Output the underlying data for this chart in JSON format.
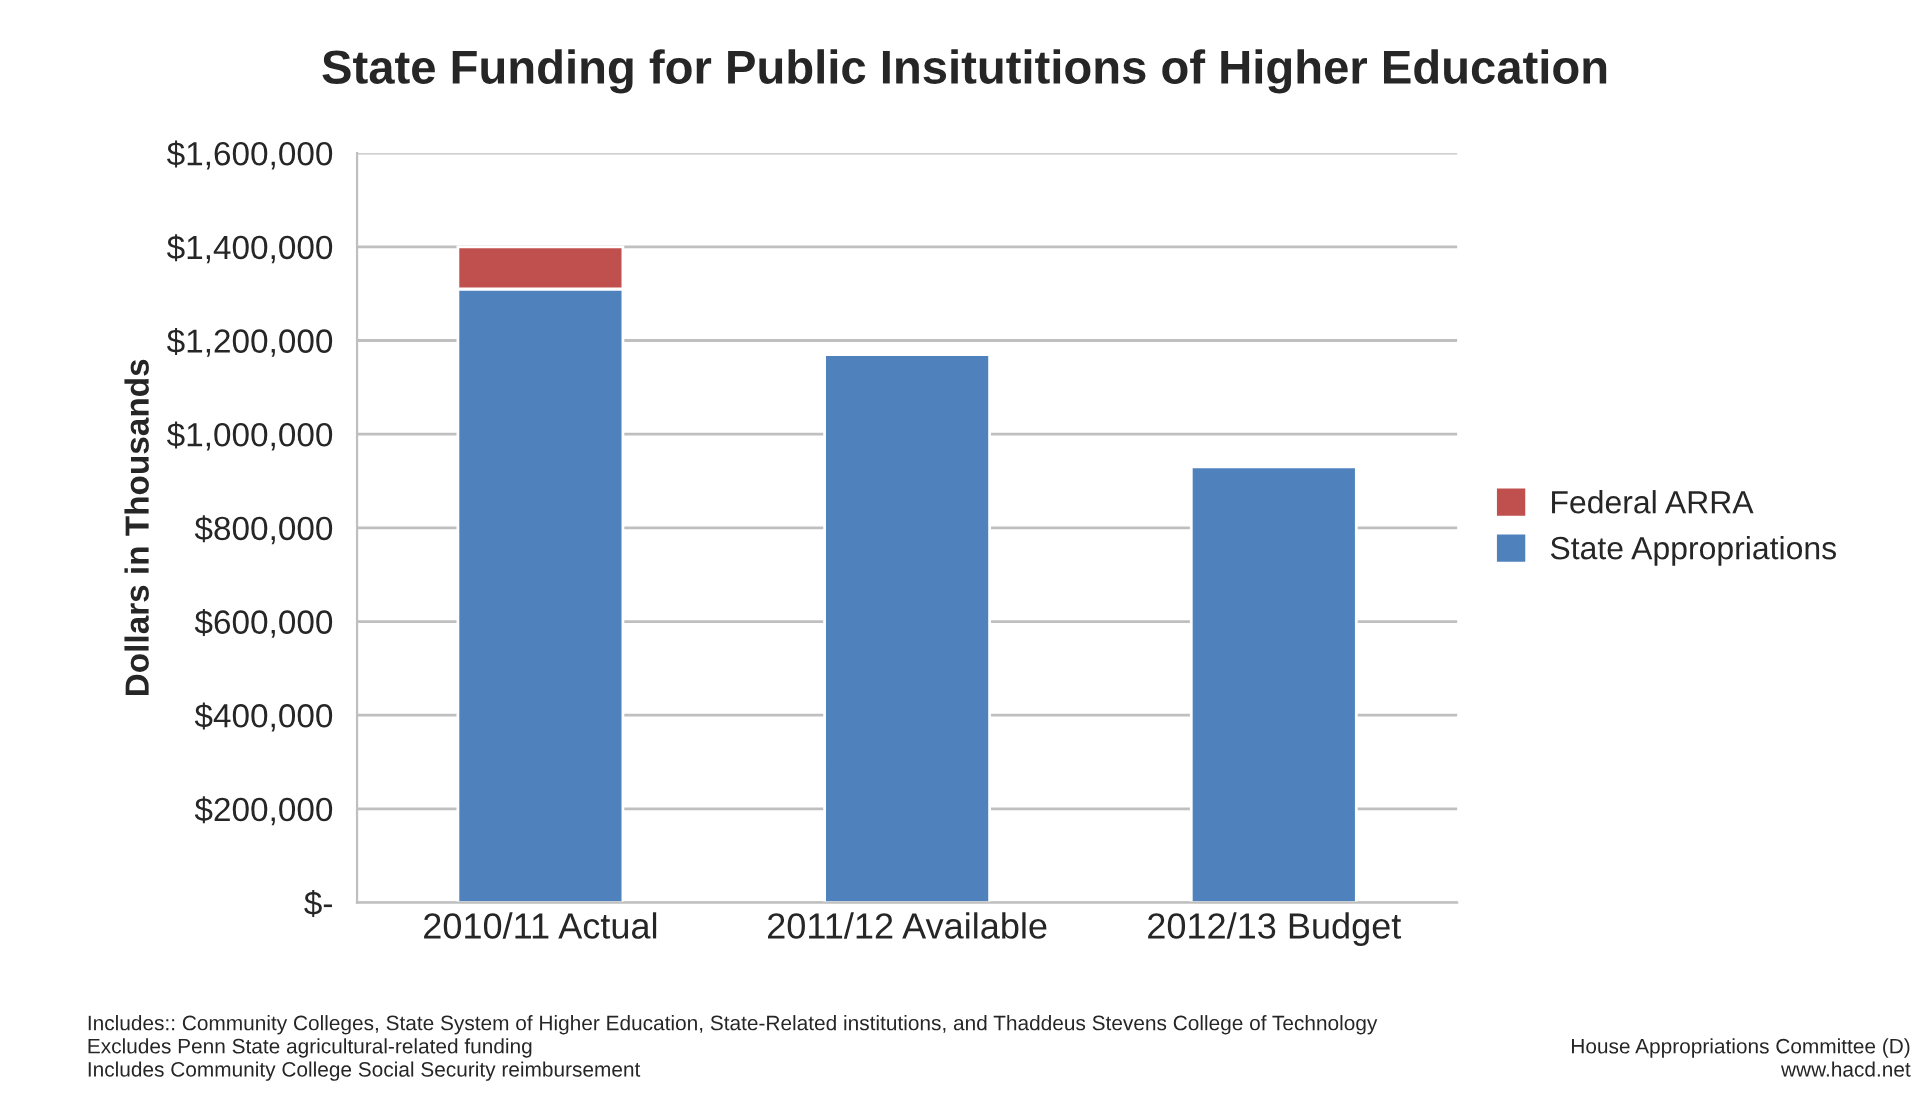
{
  "chart_data": {
    "type": "bar",
    "title": "State Funding for Public Insitutitions of Higher Education",
    "ylabel": "Dollars in Thousands",
    "categories": [
      "2010/11 Actual",
      "2011/12 Available",
      "2012/13 Budget"
    ],
    "stacked": true,
    "series": [
      {
        "name": "State Appropriations",
        "color": "#4f81bd",
        "values": [
          1310000,
          1170000,
          930000
        ]
      },
      {
        "name": "Federal ARRA",
        "color": "#c0504d",
        "values": [
          90000,
          null,
          null
        ]
      }
    ],
    "ylim": [
      0,
      1600000
    ],
    "yticks": [
      {
        "value": 0,
        "label": "$-"
      },
      {
        "value": 200000,
        "label": "$200,000"
      },
      {
        "value": 400000,
        "label": "$400,000"
      },
      {
        "value": 600000,
        "label": "$600,000"
      },
      {
        "value": 800000,
        "label": "$800,000"
      },
      {
        "value": 1000000,
        "label": "$1,000,000"
      },
      {
        "value": 1200000,
        "label": "$1,200,000"
      },
      {
        "value": 1400000,
        "label": "$1,400,000"
      },
      {
        "value": 1600000,
        "label": "$1,600,000"
      }
    ],
    "grid": "y",
    "legend": "right",
    "annotations": [
      "Includes:: Community Colleges, State System of Higher Education, State-Related institutions, and Thaddeus Stevens College of Technology\nExcludes Penn State agricultural-related funding\nIncludes Community College Social Security reimbursement",
      "House Appropriations Committee (D)\nwww.hacd.net"
    ]
  }
}
